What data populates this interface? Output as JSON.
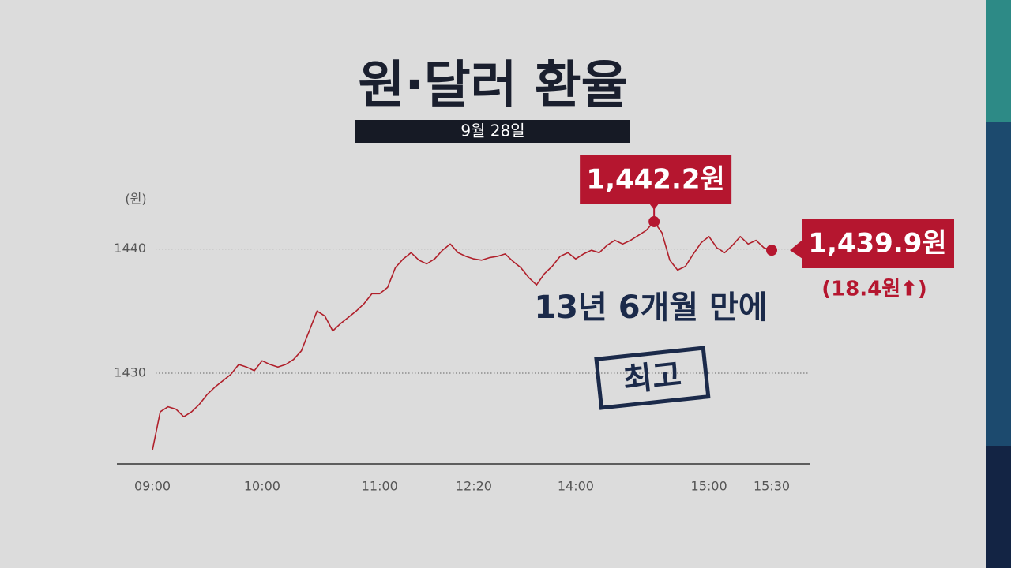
{
  "chart_data": {
    "type": "line",
    "title": "원·달러 환율",
    "subtitle": "9월 28일",
    "y_label": "(원)",
    "categories": [
      "09:00",
      null,
      null,
      null,
      null,
      null,
      null,
      null,
      null,
      null,
      null,
      null,
      null,
      null,
      "10:00",
      null,
      null,
      null,
      null,
      null,
      null,
      null,
      null,
      null,
      null,
      null,
      null,
      null,
      null,
      "11:00",
      null,
      null,
      null,
      null,
      null,
      null,
      null,
      null,
      null,
      null,
      null,
      "12:20",
      null,
      null,
      null,
      null,
      null,
      null,
      null,
      null,
      null,
      null,
      null,
      null,
      "14:00",
      null,
      null,
      null,
      null,
      null,
      null,
      null,
      null,
      null,
      null,
      null,
      null,
      null,
      null,
      null,
      null,
      "15:00",
      null,
      null,
      null,
      null,
      null,
      null,
      null,
      "15:30"
    ],
    "series": [
      {
        "name": "원·달러 환율",
        "color": "#b0202b",
        "values": [
          1423.8,
          1426.9,
          1427.3,
          1427.1,
          1426.5,
          1426.9,
          1427.5,
          1428.3,
          1428.9,
          1429.4,
          1429.9,
          1430.7,
          1430.5,
          1430.2,
          1431.0,
          1430.7,
          1430.5,
          1430.7,
          1431.1,
          1431.8,
          1433.4,
          1435.0,
          1434.6,
          1433.4,
          1434.0,
          1434.5,
          1435.0,
          1435.6,
          1436.4,
          1436.4,
          1436.9,
          1438.5,
          1439.2,
          1439.7,
          1439.1,
          1438.8,
          1439.2,
          1439.9,
          1440.4,
          1439.7,
          1439.4,
          1439.2,
          1439.1,
          1439.3,
          1439.4,
          1439.6,
          1439.0,
          1438.5,
          1437.7,
          1437.1,
          1438.0,
          1438.6,
          1439.4,
          1439.7,
          1439.2,
          1439.6,
          1439.9,
          1439.7,
          1440.3,
          1440.7,
          1440.4,
          1440.7,
          1441.1,
          1441.5,
          1442.2,
          1441.3,
          1439.1,
          1438.3,
          1438.6,
          1439.6,
          1440.5,
          1441.0,
          1440.1,
          1439.7,
          1440.3,
          1441.0,
          1440.4,
          1440.7,
          1440.1,
          1439.9
        ]
      }
    ],
    "ylim": [
      1422.7,
      1444.8
    ],
    "yticks": [
      1430,
      1440
    ],
    "grid": true,
    "annotations": [
      {
        "text": "1,442.2원",
        "point": 64
      },
      {
        "text": "1,439.9원",
        "point": 79
      },
      {
        "text": "(18.4원⬆)"
      },
      {
        "text": "13년 6개월 만에"
      },
      {
        "text": "최고"
      }
    ]
  }
}
